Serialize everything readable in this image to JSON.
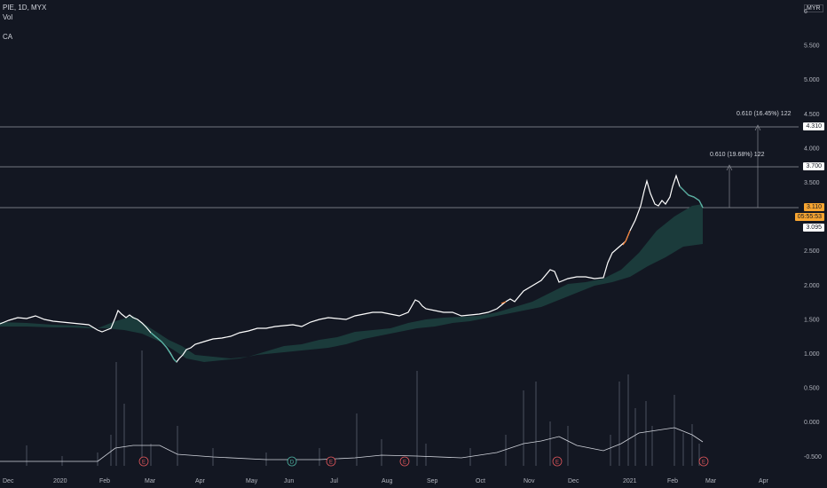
{
  "header": {
    "symbol_line": "PIE, 1D, MYX",
    "indicator1": "Vol",
    "indicator2": "",
    "indicator3": "CA"
  },
  "currency": "MYR",
  "price_axis": {
    "ticks": [
      "6",
      "5.500",
      "5.000",
      "4.500",
      "4.000",
      "3.500",
      "3.000",
      "2.500",
      "2.000",
      "1.500",
      "1.000",
      "0.500",
      "0.000",
      "-0.500"
    ],
    "labels": {
      "level1": "4.310",
      "level2": "3.700",
      "current": "3.110",
      "timer": "05:55:53",
      "level3": "3.095"
    }
  },
  "time_axis": [
    "Dec",
    "2020",
    "Feb",
    "Mar",
    "Apr",
    "May",
    "Jun",
    "Jul",
    "Aug",
    "Sep",
    "Oct",
    "Nov",
    "Dec",
    "2021",
    "Feb",
    "Mar",
    "Apr"
  ],
  "annotations": {
    "upper": "0.610 (16.45%) 122",
    "lower": "0.610 (19.68%) 122"
  },
  "event_markers": [
    "E",
    "D",
    "E",
    "E",
    "E",
    "E"
  ],
  "colors": {
    "background": "#131722",
    "price_line": "#ffffff",
    "cloud": "#1b3b3b",
    "accent_teal": "#4caf9f",
    "accent_orange": "#f57c2f",
    "current_tag": "#f7a531",
    "volume": "#5b6270"
  },
  "chart_data": {
    "type": "line",
    "x": [
      "Dec",
      "2020",
      "Feb",
      "Mar",
      "Apr",
      "May",
      "Jun",
      "Jul",
      "Aug",
      "Sep",
      "Oct",
      "Nov",
      "Dec",
      "2021",
      "Feb",
      "Mar",
      "Apr"
    ],
    "price_points": [
      [
        "Dec",
        1.4
      ],
      [
        "2020",
        1.42
      ],
      [
        "Feb",
        1.34
      ],
      [
        "Feb",
        1.6
      ],
      [
        "Mar",
        1.35
      ],
      [
        "Apr",
        0.83
      ],
      [
        "Apr",
        1.1
      ],
      [
        "May",
        1.25
      ],
      [
        "Jun",
        1.35
      ],
      [
        "Jul",
        1.4
      ],
      [
        "Aug",
        1.55
      ],
      [
        "Sep",
        1.55
      ],
      [
        "Oct",
        1.5
      ],
      [
        "Oct",
        1.65
      ],
      [
        "Nov",
        1.95
      ],
      [
        "Nov",
        2.2
      ],
      [
        "Dec",
        2.05
      ],
      [
        "2021",
        2.8
      ],
      [
        "2021",
        3.55
      ],
      [
        "Feb",
        3.35
      ],
      [
        "Feb",
        3.65
      ],
      [
        "Feb",
        3.11
      ]
    ],
    "ylim": [
      -0.5,
      6
    ],
    "last_price": 3.11
  }
}
